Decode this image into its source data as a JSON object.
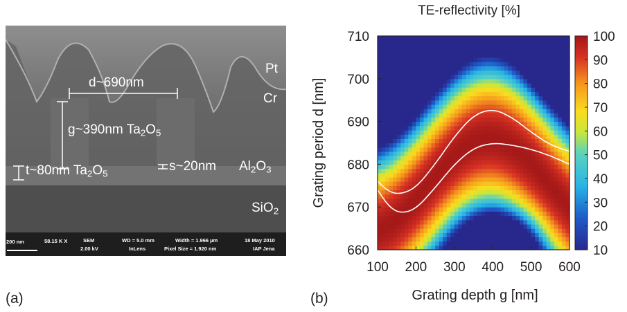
{
  "panel_a": {
    "letter": "(a)",
    "annotations": {
      "period": "d~690nm",
      "groove_depth": {
        "text": "g~390nm Ta",
        "sub1": "2",
        "mid": "O",
        "sub2": "5"
      },
      "top_layer": {
        "text": "t~80nm  Ta",
        "sub1": "2",
        "mid": "O",
        "sub2": "5"
      },
      "spacer": "s~20nm",
      "al2o3": {
        "text": "Al",
        "sub1": "2",
        "mid": "O",
        "sub2": "3"
      },
      "sio2": {
        "text": "SiO",
        "sub1": "2"
      },
      "pt": "Pt",
      "cr": "Cr"
    },
    "info_bar": {
      "scale": "200 nm",
      "mag": "58.15 K X",
      "detector_top": "SEM",
      "detector_bottom": "2.00 kV",
      "wd_top": "WD = 5.0 mm",
      "wd_bottom": "InLens",
      "width_top": "Width = 1.966 µm",
      "width_bottom": "Pixel Size = 1.920 nm",
      "date_top": "18 May 2010",
      "date_bottom": "IAP Jena"
    }
  },
  "panel_b": {
    "letter": "(b)"
  },
  "chart_data": {
    "type": "heatmap",
    "title": "TE-reflectivity [%]",
    "xlabel": "Grating depth g [nm]",
    "ylabel": "Grating period d [nm]",
    "xlim": [
      100,
      600
    ],
    "ylim": [
      660,
      710
    ],
    "x_ticks": [
      100,
      200,
      300,
      400,
      500,
      600
    ],
    "y_ticks": [
      660,
      670,
      680,
      690,
      700,
      710
    ],
    "colorbar_ticks": [
      10,
      20,
      30,
      40,
      50,
      60,
      70,
      80,
      90,
      100
    ],
    "colorbar_range": [
      10,
      100
    ],
    "contour_upper": {
      "x": [
        100,
        130,
        160,
        200,
        250,
        300,
        350,
        400,
        450,
        500,
        550,
        600
      ],
      "y": [
        676,
        673.5,
        673,
        674.5,
        680,
        686.5,
        691.5,
        693,
        691,
        687.5,
        684.5,
        683
      ]
    },
    "contour_lower": {
      "x": [
        100,
        130,
        160,
        200,
        250,
        300,
        350,
        400,
        450,
        500,
        550,
        600
      ],
      "y": [
        674,
        670,
        668.5,
        669.5,
        674.5,
        680,
        683.8,
        685,
        684.5,
        683.5,
        682,
        680
      ]
    }
  }
}
